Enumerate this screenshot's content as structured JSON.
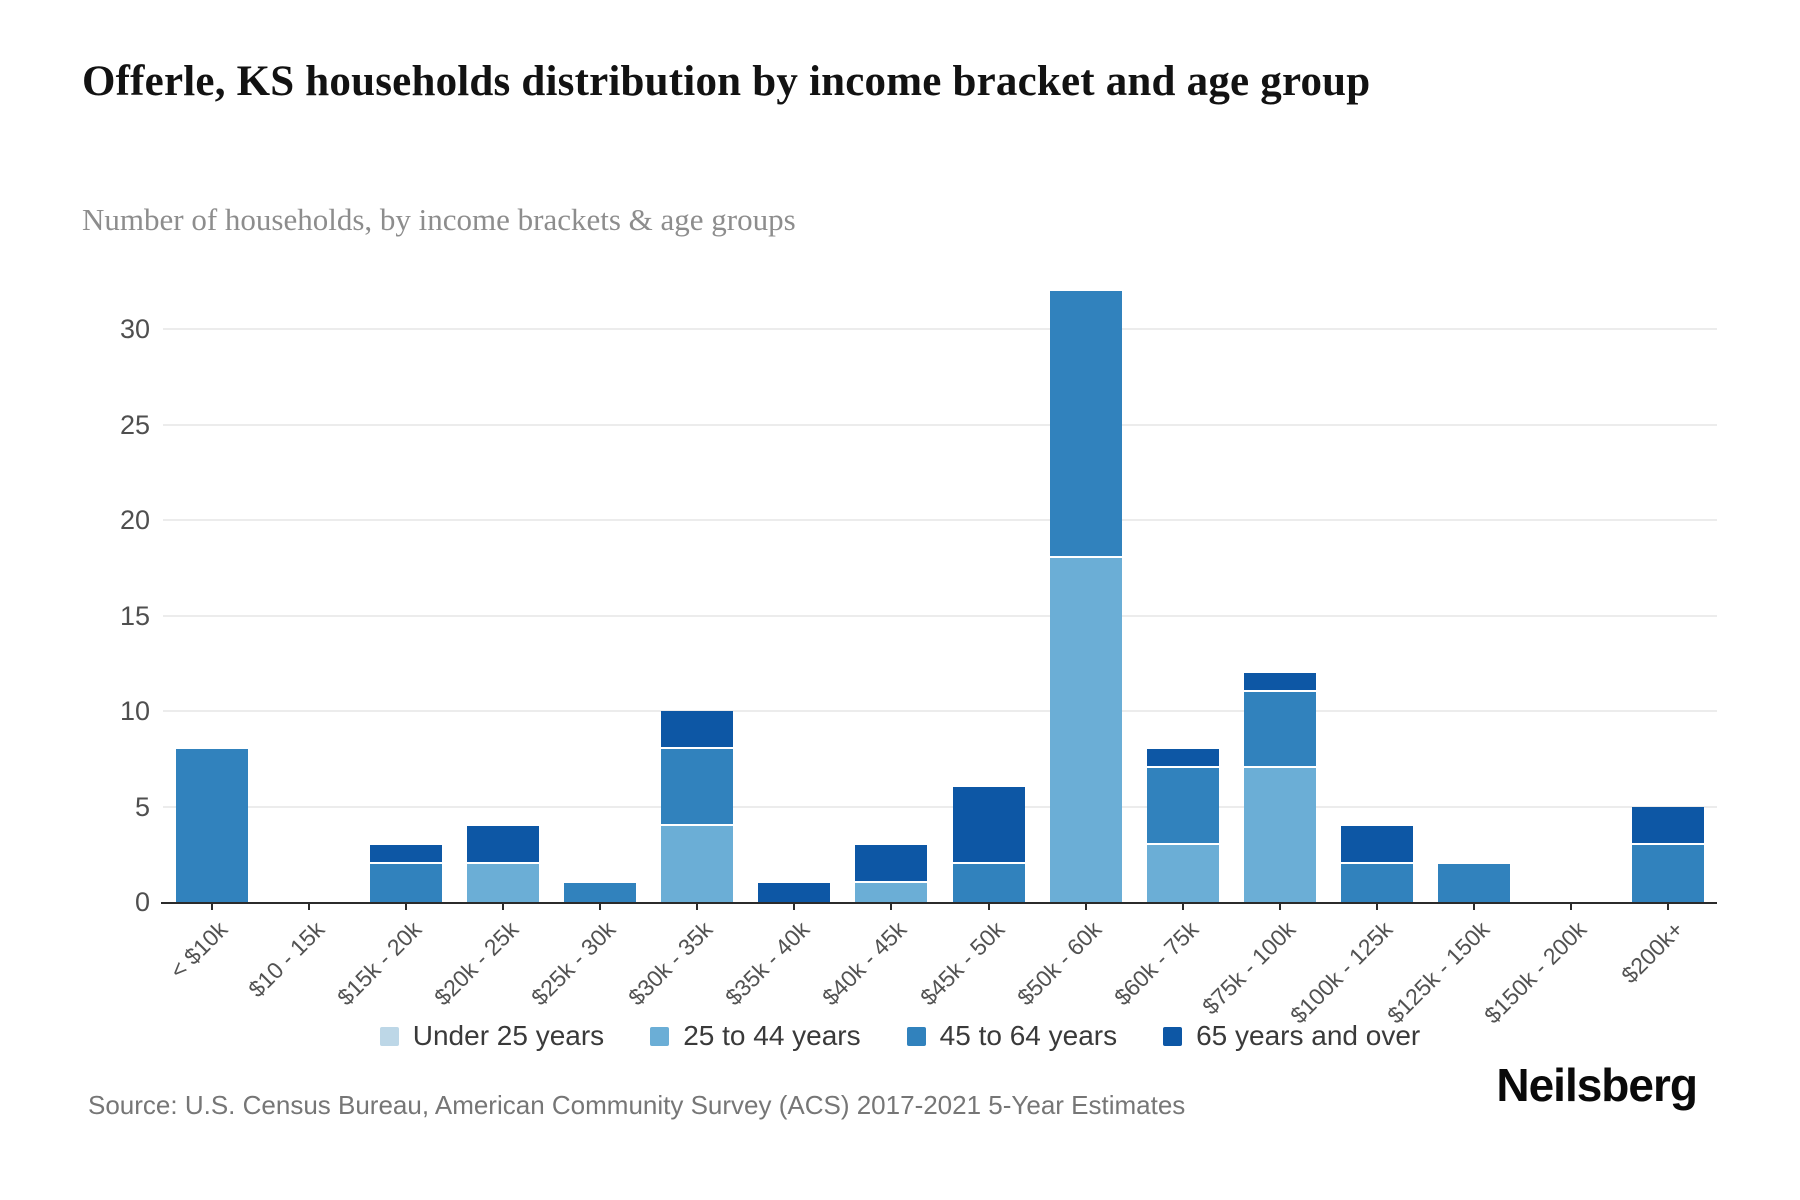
{
  "header": {
    "title": "Offerle, KS households distribution by income bracket and age group",
    "subtitle": "Number of households, by income brackets & age groups"
  },
  "chart_data": {
    "type": "bar",
    "stacked": true,
    "title": "Offerle, KS households distribution by income bracket and age group",
    "xlabel": "",
    "ylabel": "",
    "categories": [
      "< $10k",
      "$10 - 15k",
      "$15k - 20k",
      "$20k - 25k",
      "$25k - 30k",
      "$30k - 35k",
      "$35k - 40k",
      "$40k - 45k",
      "$45k - 50k",
      "$50k - 60k",
      "$60k - 75k",
      "$75k - 100k",
      "$100k - 125k",
      "$125k - 150k",
      "$150k - 200k",
      "$200k+"
    ],
    "series": [
      {
        "name": "Under 25 years",
        "color": "#bdd7e7",
        "values": [
          0,
          0,
          0,
          0,
          0,
          0,
          0,
          0,
          0,
          0,
          0,
          0,
          0,
          0,
          0,
          0
        ]
      },
      {
        "name": "25 to 44 years",
        "color": "#6baed6",
        "values": [
          0,
          0,
          0,
          2,
          0,
          4,
          0,
          1,
          0,
          18,
          3,
          7,
          0,
          0,
          0,
          0
        ]
      },
      {
        "name": "45 to 64 years",
        "color": "#3182bd",
        "values": [
          8,
          0,
          2,
          0,
          1,
          4,
          0,
          0,
          2,
          14,
          4,
          4,
          2,
          2,
          0,
          3
        ]
      },
      {
        "name": "65 years and over",
        "color": "#0d57a5",
        "values": [
          0,
          0,
          1,
          2,
          0,
          2,
          1,
          2,
          4,
          0,
          1,
          1,
          2,
          0,
          0,
          2
        ]
      }
    ],
    "totals": [
      8,
      0,
      3,
      4,
      1,
      10,
      1,
      3,
      6,
      32,
      8,
      12,
      4,
      2,
      0,
      5
    ],
    "y_ticks": [
      0,
      5,
      10,
      15,
      20,
      25,
      30
    ],
    "ylim": [
      0,
      32.4
    ],
    "grid": "horizontal",
    "legend_position": "bottom"
  },
  "footer": {
    "source": "Source: U.S. Census Bureau, American Community Survey (ACS) 2017-2021 5-Year Estimates",
    "brand": "Neilsberg"
  }
}
